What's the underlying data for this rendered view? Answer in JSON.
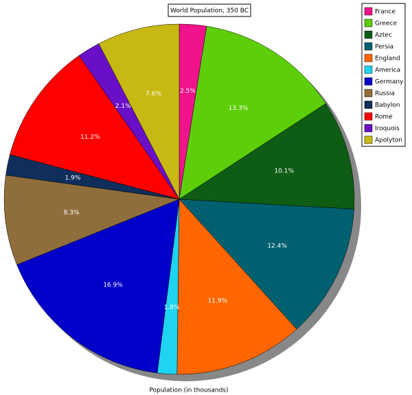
{
  "chart_data": {
    "type": "pie",
    "title": "World Population, 350 BC",
    "x_label": "Population (in thousands)",
    "categories": [
      "France",
      "Greece",
      "Aztec",
      "Persia",
      "England",
      "America",
      "Germany",
      "Russia",
      "Babylon",
      "Rome",
      "Iroquois",
      "Apolyton"
    ],
    "values": [
      2.5,
      13.3,
      10.1,
      12.4,
      11.9,
      1.8,
      16.9,
      8.3,
      1.9,
      11.2,
      2.1,
      7.6
    ],
    "value_labels": [
      "2.5%",
      "13.3%",
      "10.1%",
      "12.4%",
      "11.9%",
      "1.8%",
      "16.9%",
      "8.3%",
      "1.9%",
      "11.2%",
      "2.1%",
      "7.6%"
    ],
    "colors": [
      "#f0148c",
      "#5ccf0a",
      "#0f5c14",
      "#006070",
      "#ff6600",
      "#1ed4f0",
      "#0000c8",
      "#8f6e3c",
      "#0f2e5c",
      "#ff0000",
      "#6a0fc8",
      "#c8b814"
    ],
    "legend": "top-right"
  }
}
